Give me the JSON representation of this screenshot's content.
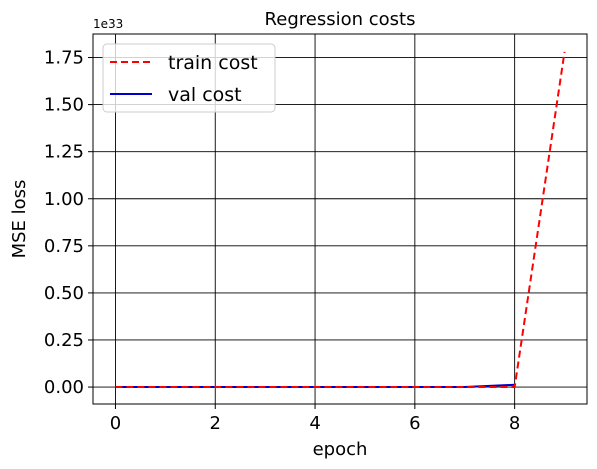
{
  "chart_data": {
    "type": "line",
    "title": "Regression costs",
    "xlabel": "epoch",
    "ylabel": "MSE loss",
    "y_offset_text": "1e33",
    "xlim": [
      -0.45,
      9.45
    ],
    "ylim": [
      -0.09,
      1.875
    ],
    "xticks": [
      0,
      2,
      4,
      6,
      8
    ],
    "xtick_labels": [
      "0",
      "2",
      "4",
      "6",
      "8"
    ],
    "yticks": [
      0.0,
      0.25,
      0.5,
      0.75,
      1.0,
      1.25,
      1.5,
      1.75
    ],
    "ytick_labels": [
      "0.00",
      "0.25",
      "0.50",
      "0.75",
      "1.00",
      "1.25",
      "1.50",
      "1.75"
    ],
    "grid": true,
    "legend_position": "top-left",
    "series": [
      {
        "name": "train cost",
        "color": "#ff0000",
        "dash": "dashed",
        "x": [
          0,
          1,
          2,
          3,
          4,
          5,
          6,
          7,
          8,
          9
        ],
        "values": [
          0,
          0,
          0,
          0,
          0,
          0,
          0,
          0,
          0,
          1.78
        ]
      },
      {
        "name": "val cost",
        "color": "#0000cc",
        "dash": "solid",
        "x": [
          0,
          1,
          2,
          3,
          4,
          5,
          6,
          7,
          8
        ],
        "values": [
          0,
          0,
          0,
          0,
          0,
          0,
          0,
          0.0005,
          0.012
        ]
      }
    ]
  }
}
